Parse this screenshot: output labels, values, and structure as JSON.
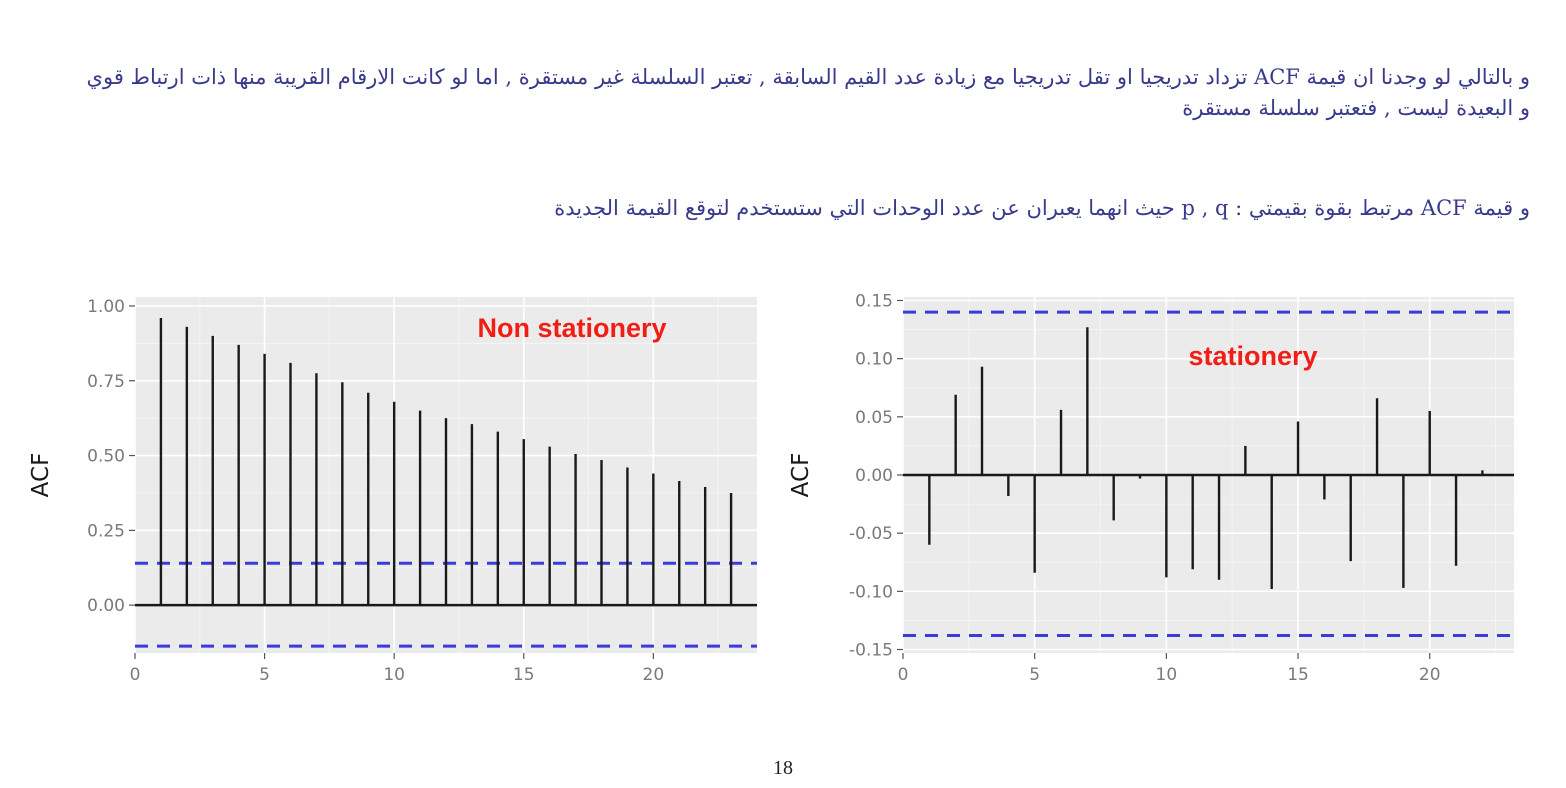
{
  "text": {
    "paragraph_1": "و بالتالي لو وجدنا ان قيمة  ACF تزداد تدريجيا او تقل تدريجيا مع زيادة عدد القيم السابقة  , تعتبر السلسلة غير مستقرة , اما لو كانت الارقام القريبة منها ذات ارتباط قوي و البعيدة ليست , فتعتبر سلسلة مستقرة",
    "paragraph_2": "و قيمة  ACF مرتبط بقوة بقيمتي :  p , q  حيث انهما يعبران عن عدد الوحدات التي ستستخدم لتوقع القيمة الجديدة",
    "page_number": "18"
  },
  "colors": {
    "text": "#3a3a8c",
    "annotation": "#f01e14",
    "confidence_band": "#3b3bd6",
    "spike": "#1a1a1a",
    "panel": "#ebebeb"
  },
  "chart_data": [
    {
      "type": "bar",
      "style": "acf-lollipop",
      "annotation": "Non stationery",
      "xlabel": "",
      "ylabel": "ACF",
      "xlim": [
        0,
        24
      ],
      "ylim": [
        -0.16,
        1.03
      ],
      "xticks": [
        0,
        5,
        10,
        15,
        20
      ],
      "yticks": [
        0.0,
        0.25,
        0.5,
        0.75,
        1.0
      ],
      "ytick_labels": [
        "0.00",
        "0.25",
        "0.50",
        "0.75",
        "1.00"
      ],
      "confidence_bounds": [
        0.14,
        -0.137
      ],
      "grid": true,
      "lags": [
        1,
        2,
        3,
        4,
        5,
        6,
        7,
        8,
        9,
        10,
        11,
        12,
        13,
        14,
        15,
        16,
        17,
        18,
        19,
        20,
        21,
        22,
        23
      ],
      "values": [
        0.96,
        0.93,
        0.9,
        0.87,
        0.84,
        0.81,
        0.775,
        0.745,
        0.71,
        0.68,
        0.65,
        0.625,
        0.605,
        0.58,
        0.555,
        0.53,
        0.505,
        0.485,
        0.46,
        0.44,
        0.415,
        0.395,
        0.375
      ]
    },
    {
      "type": "bar",
      "style": "acf-lollipop",
      "annotation": "stationery",
      "xlabel": "",
      "ylabel": "ACF",
      "xlim": [
        0,
        23.2
      ],
      "ylim": [
        -0.153,
        0.153
      ],
      "xticks": [
        0,
        5,
        10,
        15,
        20
      ],
      "yticks": [
        -0.15,
        -0.1,
        -0.05,
        0.0,
        0.05,
        0.1,
        0.15
      ],
      "ytick_labels": [
        "-0.15",
        "-0.10",
        "-0.05",
        "0.00",
        "0.05",
        "0.10",
        "0.15"
      ],
      "confidence_bounds": [
        0.14,
        -0.138
      ],
      "grid": true,
      "lags": [
        1,
        2,
        3,
        4,
        5,
        6,
        7,
        8,
        9,
        10,
        11,
        12,
        13,
        14,
        15,
        16,
        17,
        18,
        19,
        20,
        21,
        22
      ],
      "values": [
        -0.06,
        0.069,
        0.093,
        -0.018,
        -0.084,
        0.056,
        0.127,
        -0.039,
        -0.003,
        -0.088,
        -0.081,
        -0.09,
        0.025,
        -0.098,
        0.046,
        -0.021,
        -0.074,
        0.066,
        -0.097,
        0.055,
        -0.078,
        0.004
      ]
    }
  ]
}
